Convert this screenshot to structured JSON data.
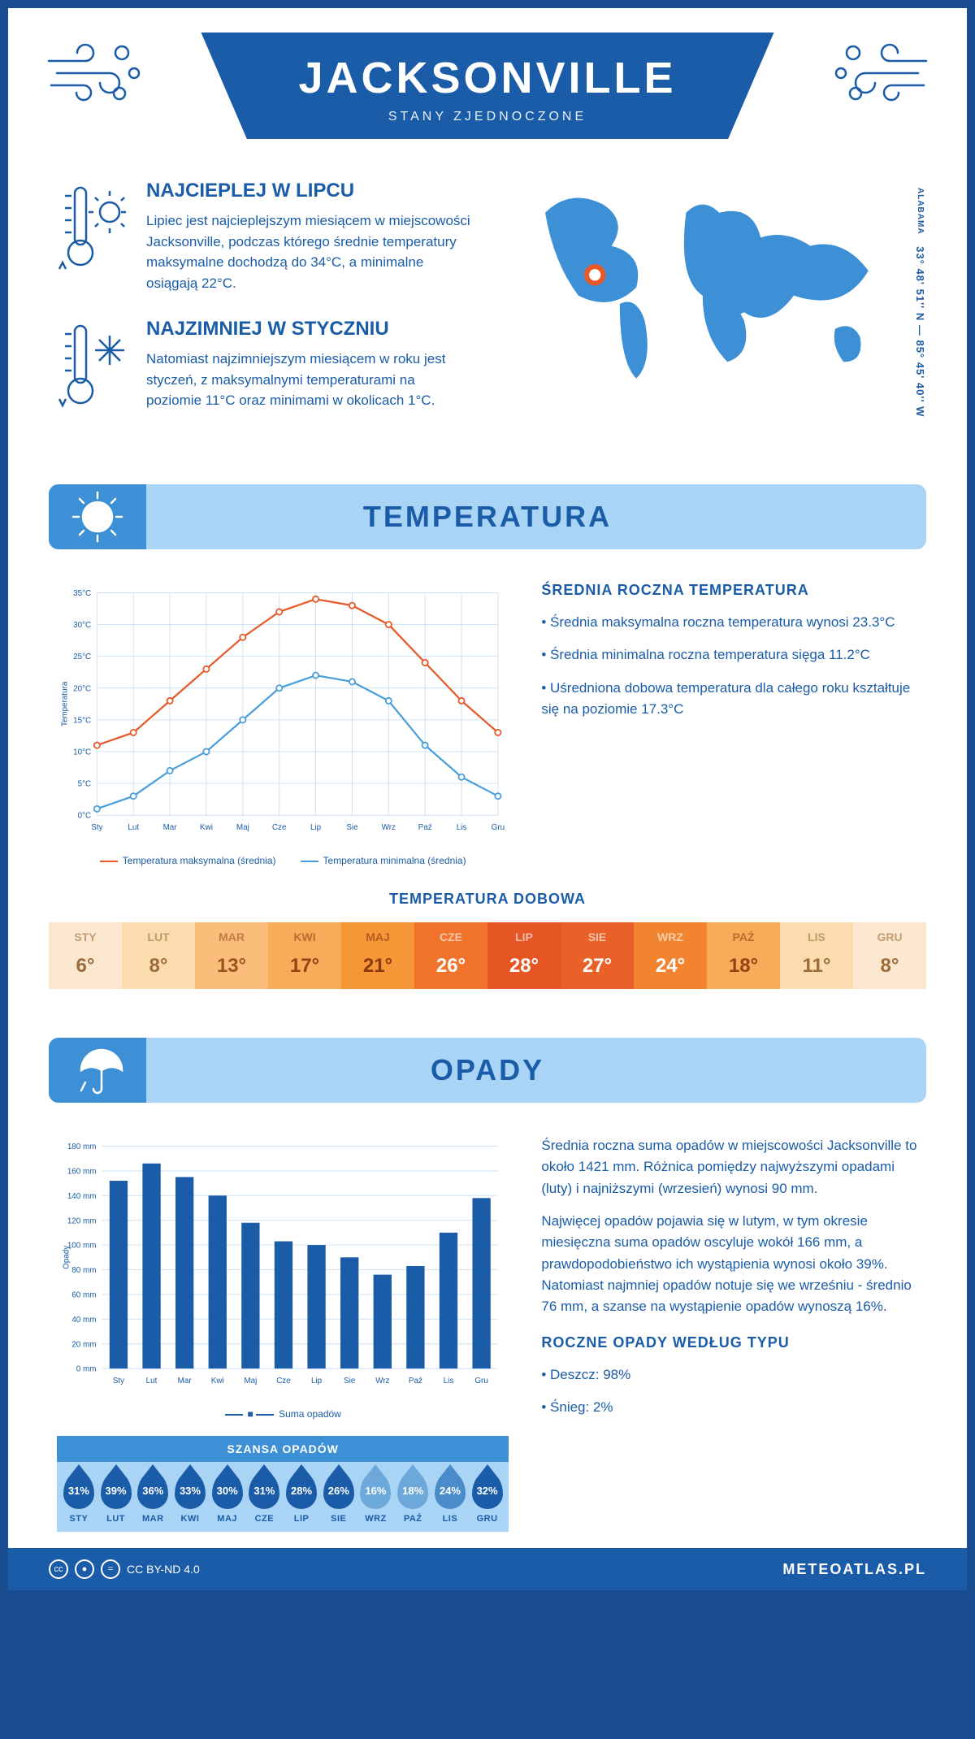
{
  "header": {
    "city": "JACKSONVILLE",
    "country": "STANY ZJEDNOCZONE"
  },
  "coords": {
    "region": "ALABAMA",
    "text": "33° 48' 51'' N — 85° 45' 40'' W"
  },
  "intro_hot": {
    "title": "NAJCIEPLEJ W LIPCU",
    "body": "Lipiec jest najcieplejszym miesiącem w miejscowości Jacksonville, podczas którego średnie temperatury maksymalne dochodzą do 34°C, a minimalne osiągają 22°C."
  },
  "intro_cold": {
    "title": "NAJZIMNIEJ W STYCZNIU",
    "body": "Natomiast najzimniejszym miesiącem w roku jest styczeń, z maksymalnymi temperaturami na poziomie 11°C oraz minimami w okolicach 1°C."
  },
  "temp_section": {
    "title": "TEMPERATURA",
    "avg_title": "ŚREDNIA ROCZNA TEMPERATURA",
    "bullet1": "• Średnia maksymalna roczna temperatura wynosi 23.3°C",
    "bullet2": "• Średnia minimalna roczna temperatura sięga 11.2°C",
    "bullet3": "• Uśredniona dobowa temperatura dla całego roku kształtuje się na poziomie 17.3°C",
    "daily_title": "TEMPERATURA DOBOWA",
    "legend_max": "Temperatura maksymalna (średnia)",
    "legend_min": "Temperatura minimalna (średnia)"
  },
  "temp_chart": {
    "type": "line",
    "months": [
      "Sty",
      "Lut",
      "Mar",
      "Kwi",
      "Maj",
      "Cze",
      "Lip",
      "Sie",
      "Wrz",
      "Paź",
      "Lis",
      "Gru"
    ],
    "max_series": [
      11,
      13,
      18,
      23,
      28,
      32,
      34,
      33,
      30,
      24,
      18,
      13
    ],
    "min_series": [
      1,
      3,
      7,
      10,
      15,
      20,
      22,
      21,
      18,
      11,
      6,
      3
    ],
    "ymin": 0,
    "ymax": 35,
    "ystep": 5,
    "ylabel": "Temperatura",
    "max_color": "#e8592a",
    "min_color": "#4a9edb",
    "grid_color": "#c9dff2",
    "bg": "#ffffff",
    "label_fontsize": 11
  },
  "temp_strip": {
    "months": [
      "STY",
      "LUT",
      "MAR",
      "KWI",
      "MAJ",
      "CZE",
      "LIP",
      "SIE",
      "WRZ",
      "PAŹ",
      "LIS",
      "GRU"
    ],
    "values": [
      "6°",
      "8°",
      "13°",
      "17°",
      "21°",
      "26°",
      "28°",
      "27°",
      "24°",
      "18°",
      "11°",
      "8°"
    ],
    "bg_colors": [
      "#fce8d0",
      "#fbdcae",
      "#fabd7a",
      "#f8ab58",
      "#f79637",
      "#f0742c",
      "#e55624",
      "#e96128",
      "#f28430",
      "#f8ab58",
      "#fbdcae",
      "#fce8d0"
    ],
    "text_colors": [
      "#9c6b3a",
      "#9c6b3a",
      "#9a5420",
      "#914315",
      "#8a3a10",
      "#ffffff",
      "#ffffff",
      "#ffffff",
      "#ffffff",
      "#914315",
      "#9c6b3a",
      "#9c6b3a"
    ]
  },
  "precip_section": {
    "title": "OPADY",
    "para1": "Średnia roczna suma opadów w miejscowości Jacksonville to około 1421 mm. Różnica pomiędzy najwyższymi opadami (luty) i najniższymi (wrzesień) wynosi 90 mm.",
    "para2": "Najwięcej opadów pojawia się w lutym, w tym okresie miesięczna suma opadów oscyluje wokół 166 mm, a prawdopodobieństwo ich wystąpienia wynosi około 39%. Natomiast najmniej opadów notuje się we wrześniu - średnio 76 mm, a szanse na wystąpienie opadów wynoszą 16%.",
    "type_title": "ROCZNE OPADY WEDŁUG TYPU",
    "type1": "• Deszcz: 98%",
    "type2": "• Śnieg: 2%",
    "chance_title": "SZANSA OPADÓW",
    "legend": "Suma opadów"
  },
  "precip_chart": {
    "type": "bar",
    "months": [
      "Sty",
      "Lut",
      "Mar",
      "Kwi",
      "Maj",
      "Cze",
      "Lip",
      "Sie",
      "Wrz",
      "Paź",
      "Lis",
      "Gru"
    ],
    "values": [
      152,
      166,
      155,
      140,
      118,
      103,
      100,
      90,
      76,
      83,
      110,
      138
    ],
    "ymin": 0,
    "ymax": 180,
    "ystep": 20,
    "ylabel": "Opady",
    "bar_color": "#1a5ca8",
    "grid_color": "#c9dff2",
    "bar_width": 0.55,
    "label_fontsize": 11
  },
  "rain_chance": {
    "months": [
      "STY",
      "LUT",
      "MAR",
      "KWI",
      "MAJ",
      "CZE",
      "LIP",
      "SIE",
      "WRZ",
      "PAŹ",
      "LIS",
      "GRU"
    ],
    "values": [
      "31%",
      "39%",
      "36%",
      "33%",
      "30%",
      "31%",
      "28%",
      "26%",
      "16%",
      "18%",
      "24%",
      "32%"
    ],
    "drop_colors": [
      "#1a5ca8",
      "#1a5ca8",
      "#1a5ca8",
      "#1a5ca8",
      "#1a5ca8",
      "#1a5ca8",
      "#1a5ca8",
      "#1a5ca8",
      "#6da8db",
      "#6da8db",
      "#4a8cc9",
      "#1a5ca8"
    ]
  },
  "footer": {
    "license": "CC BY-ND 4.0",
    "site": "METEOATLAS.PL"
  }
}
